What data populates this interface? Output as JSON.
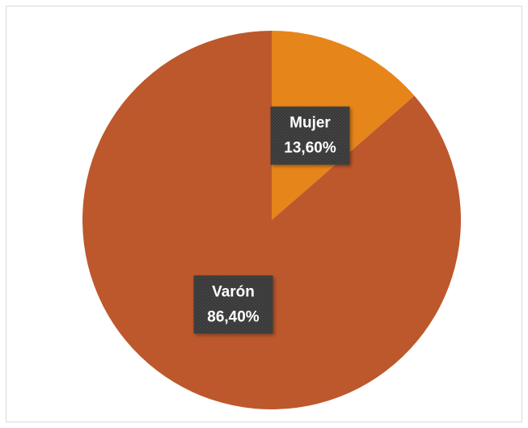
{
  "chart_data": {
    "type": "pie",
    "categories": [
      "Mujer",
      "Varón"
    ],
    "values": [
      13.6,
      86.4
    ],
    "value_labels": [
      "13,60%",
      "86,40%"
    ],
    "colors": [
      "#e6851a",
      "#bd582c"
    ]
  }
}
